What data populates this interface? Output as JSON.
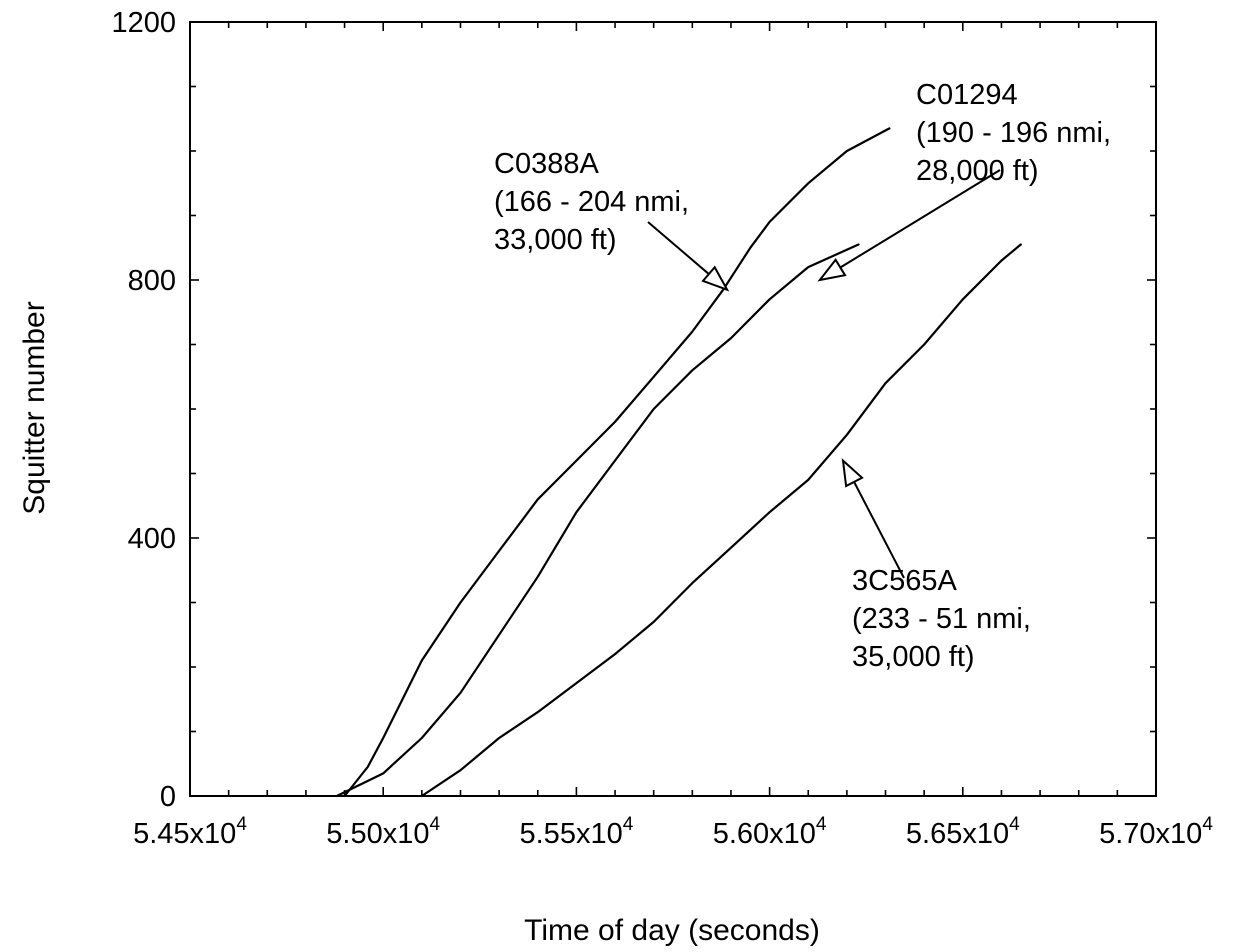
{
  "chart_data": {
    "type": "line",
    "title": "",
    "xlabel": "Time of day (seconds)",
    "ylabel": "Squitter number",
    "xlim": [
      54500,
      57000
    ],
    "ylim": [
      0,
      1200
    ],
    "x_tick_values": [
      54500,
      55000,
      55500,
      56000,
      56500,
      57000
    ],
    "x_tick_labels": [
      {
        "mantissa": "5.45x10",
        "exp": "4"
      },
      {
        "mantissa": "5.50x10",
        "exp": "4"
      },
      {
        "mantissa": "5.55x10",
        "exp": "4"
      },
      {
        "mantissa": "5.60x10",
        "exp": "4"
      },
      {
        "mantissa": "5.65x10",
        "exp": "4"
      },
      {
        "mantissa": "5.70x10",
        "exp": "4"
      }
    ],
    "y_tick_values": [
      0,
      400,
      800,
      1200
    ],
    "y_tick_labels": [
      "0",
      "400",
      "800",
      "1200"
    ],
    "grid": false,
    "series": [
      {
        "points": [
          [
            54900,
            0
          ],
          [
            54960,
            45
          ],
          [
            55000,
            90
          ],
          [
            55050,
            150
          ],
          [
            55100,
            210
          ],
          [
            55200,
            300
          ],
          [
            55300,
            380
          ],
          [
            55400,
            460
          ],
          [
            55500,
            520
          ],
          [
            55600,
            580
          ],
          [
            55700,
            650
          ],
          [
            55800,
            720
          ],
          [
            55880,
            785
          ],
          [
            55950,
            850
          ],
          [
            56000,
            890
          ],
          [
            56100,
            950
          ],
          [
            56200,
            1000
          ],
          [
            56310,
            1035
          ]
        ]
      },
      {
        "points": [
          [
            54880,
            0
          ],
          [
            55000,
            35
          ],
          [
            55100,
            90
          ],
          [
            55200,
            160
          ],
          [
            55300,
            250
          ],
          [
            55400,
            340
          ],
          [
            55500,
            440
          ],
          [
            55600,
            520
          ],
          [
            55700,
            600
          ],
          [
            55800,
            660
          ],
          [
            55900,
            710
          ],
          [
            56000,
            770
          ],
          [
            56100,
            820
          ],
          [
            56230,
            855
          ]
        ]
      },
      {
        "points": [
          [
            55100,
            0
          ],
          [
            55200,
            40
          ],
          [
            55300,
            90
          ],
          [
            55400,
            130
          ],
          [
            55500,
            175
          ],
          [
            55600,
            220
          ],
          [
            55700,
            270
          ],
          [
            55800,
            330
          ],
          [
            55900,
            385
          ],
          [
            56000,
            440
          ],
          [
            56100,
            490
          ],
          [
            56200,
            560
          ],
          [
            56300,
            640
          ],
          [
            56400,
            700
          ],
          [
            56500,
            770
          ],
          [
            56600,
            830
          ],
          [
            56650,
            855
          ]
        ]
      }
    ],
    "annotations": [
      {
        "lines": [
          "C0388A",
          "(166 - 204 nmi,",
          "33,000 ft)"
        ],
        "arrow_to": [
          55890,
          785
        ]
      },
      {
        "lines": [
          "C01294",
          "(190 - 196 nmi,",
          "28,000 ft)"
        ],
        "arrow_to": [
          56130,
          800
        ]
      },
      {
        "lines": [
          "3C565A",
          "(233 - 51 nmi,",
          "35,000 ft)"
        ],
        "arrow_to": [
          56190,
          520
        ]
      }
    ]
  }
}
